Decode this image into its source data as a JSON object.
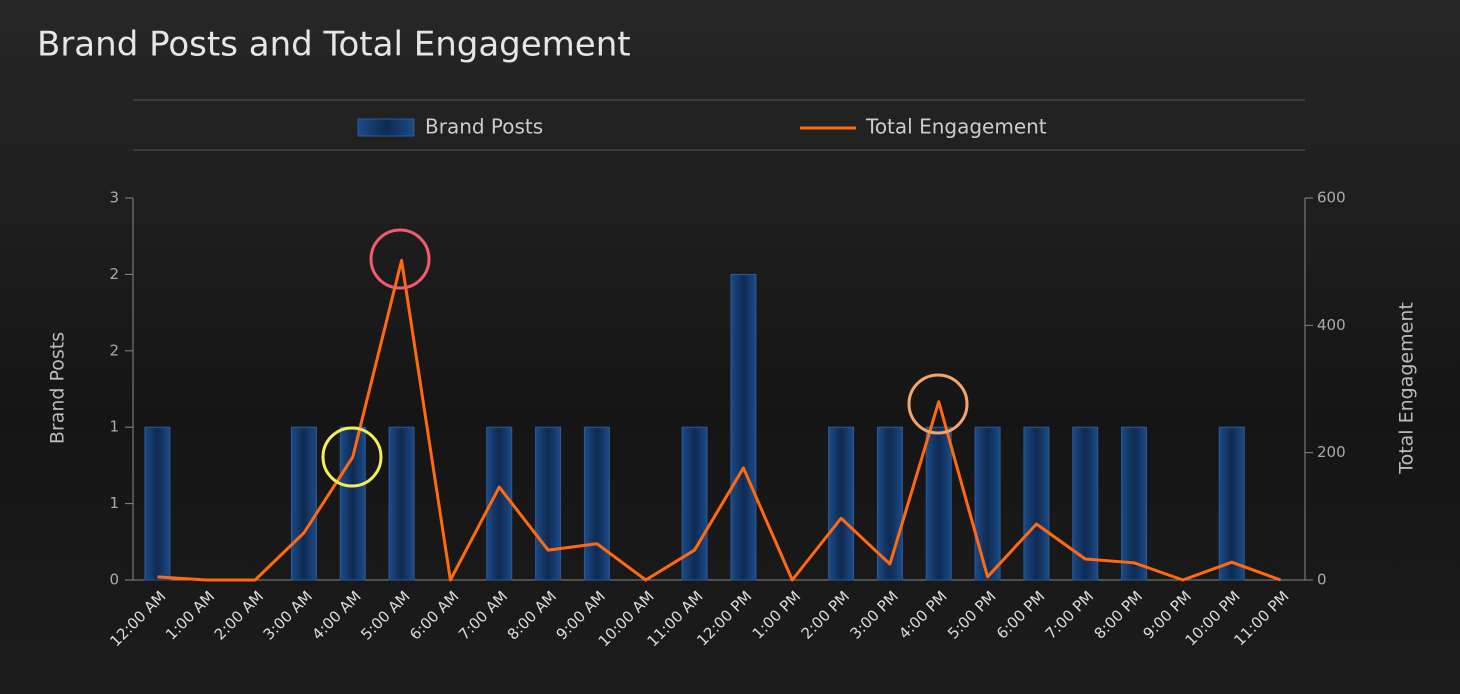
{
  "chart_data": {
    "type": "bar-line",
    "title": "Brand Posts and Total Engagement",
    "categories": [
      "12:00 AM",
      "1:00 AM",
      "2:00 AM",
      "3:00 AM",
      "4:00 AM",
      "5:00 AM",
      "6:00 AM",
      "7:00 AM",
      "8:00 AM",
      "9:00 AM",
      "10:00 AM",
      "11:00 AM",
      "12:00 PM",
      "1:00 PM",
      "2:00 PM",
      "3:00 PM",
      "4:00 PM",
      "5:00 PM",
      "6:00 PM",
      "7:00 PM",
      "8:00 PM",
      "9:00 PM",
      "10:00 PM",
      "11:00 PM"
    ],
    "y_label": "Brand Posts",
    "y2_label": "Total Engagement",
    "ylim": [
      0,
      2.5
    ],
    "yticks": [
      0,
      {
        "value": 0.5,
        "label": "1"
      },
      1,
      {
        "value": 1.5,
        "label": "2"
      },
      2,
      {
        "value": 2.5,
        "label": "3"
      }
    ],
    "y2lim": [
      0,
      600
    ],
    "y2ticks": [
      0,
      200,
      400,
      600
    ],
    "series": [
      {
        "name": "Brand Posts",
        "color": "#1f4e8c",
        "type": "bar",
        "values": [
          1,
          0,
          0,
          1,
          1,
          1,
          0,
          1,
          1,
          1,
          0,
          1,
          2,
          0,
          1,
          1,
          1,
          1,
          1,
          1,
          1,
          0,
          1,
          0
        ]
      },
      {
        "name": "Total Engagement",
        "color": "#ff6a10",
        "type": "line",
        "axis": "y2",
        "values": [
          5,
          0,
          0,
          74,
          193,
          502,
          0,
          146,
          47,
          57,
          0,
          47,
          176,
          0,
          97,
          25,
          280,
          5,
          88,
          33,
          27,
          0,
          28,
          0
        ]
      }
    ]
  }
}
